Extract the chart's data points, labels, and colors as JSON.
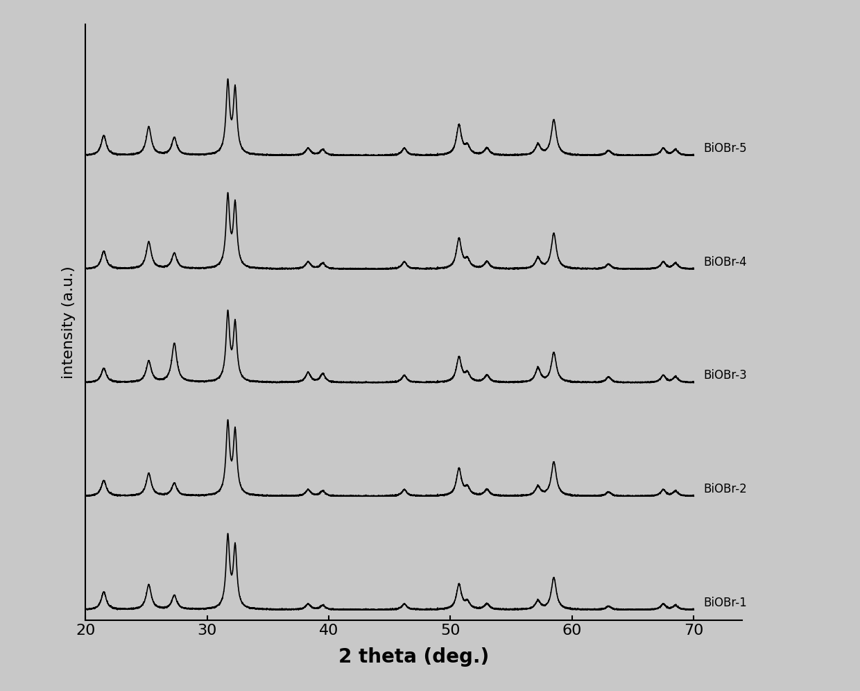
{
  "title": "",
  "xlabel": "2 theta (deg.)",
  "ylabel": "intensity (a.u.)",
  "xlim": [
    20,
    70
  ],
  "background_color": "#c8c8c8",
  "plot_bg_color": "#c8c8c8",
  "line_color": "#000000",
  "line_width": 1.2,
  "labels": [
    "BiOBr-1",
    "BiOBr-2",
    "BiOBr-3",
    "BiOBr-4",
    "BiOBr-5"
  ],
  "offsets": [
    0,
    1.6,
    3.2,
    4.8,
    6.4
  ],
  "peak_positions": [
    21.5,
    25.2,
    27.3,
    31.7,
    32.3,
    38.3,
    39.5,
    46.2,
    50.7,
    51.4,
    53.0,
    57.2,
    58.5,
    63.0,
    67.5,
    68.5
  ],
  "peak_heights_1": [
    0.25,
    0.35,
    0.2,
    1.0,
    0.85,
    0.08,
    0.06,
    0.08,
    0.35,
    0.1,
    0.08,
    0.12,
    0.45,
    0.05,
    0.08,
    0.06
  ],
  "peak_heights_2": [
    0.22,
    0.32,
    0.18,
    1.0,
    0.88,
    0.09,
    0.07,
    0.09,
    0.38,
    0.11,
    0.09,
    0.13,
    0.48,
    0.06,
    0.09,
    0.07
  ],
  "peak_heights_3": [
    0.2,
    0.3,
    0.55,
    0.95,
    0.8,
    0.14,
    0.12,
    0.1,
    0.35,
    0.12,
    0.1,
    0.2,
    0.42,
    0.08,
    0.1,
    0.08
  ],
  "peak_heights_4": [
    0.25,
    0.38,
    0.22,
    1.0,
    0.88,
    0.1,
    0.08,
    0.1,
    0.42,
    0.12,
    0.1,
    0.15,
    0.5,
    0.07,
    0.1,
    0.08
  ],
  "peak_heights_5": [
    0.28,
    0.4,
    0.25,
    1.0,
    0.9,
    0.1,
    0.08,
    0.1,
    0.42,
    0.12,
    0.1,
    0.15,
    0.5,
    0.07,
    0.1,
    0.08
  ],
  "peak_widths": [
    0.25,
    0.25,
    0.25,
    0.18,
    0.18,
    0.25,
    0.25,
    0.25,
    0.25,
    0.25,
    0.25,
    0.25,
    0.25,
    0.25,
    0.25,
    0.25
  ],
  "figsize": [
    12.4,
    9.96
  ],
  "dpi": 100
}
